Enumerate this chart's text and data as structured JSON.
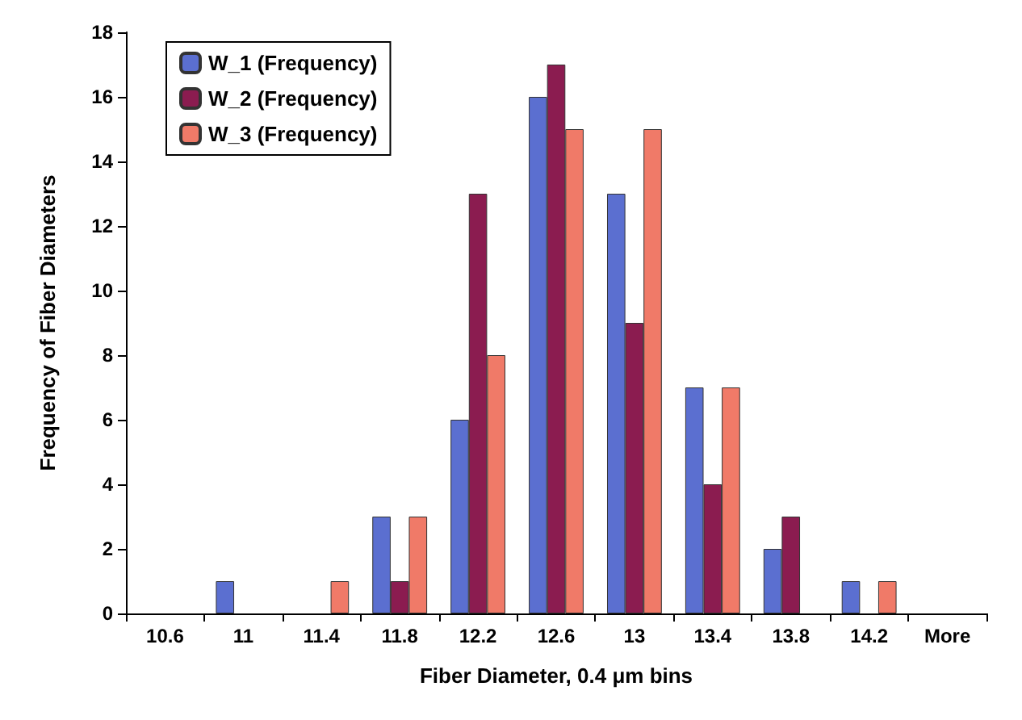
{
  "chart_data": {
    "type": "bar",
    "xlabel": "Fiber Diameter, 0.4 μm bins",
    "ylabel": "Frequency of Fiber Diameters",
    "categories": [
      "10.6",
      "11",
      "11.4",
      "11.8",
      "12.2",
      "12.6",
      "13",
      "13.4",
      "13.8",
      "14.2",
      "More"
    ],
    "series": [
      {
        "name": "W_1 (Frequency)",
        "color": "#5b6fd0",
        "values": [
          0,
          1,
          0,
          3,
          6,
          16,
          13,
          7,
          2,
          1,
          0
        ]
      },
      {
        "name": "W_2 (Frequency)",
        "color": "#8b1c50",
        "values": [
          0,
          0,
          0,
          1,
          13,
          17,
          9,
          4,
          3,
          0,
          0
        ]
      },
      {
        "name": "W_3 (Frequency)",
        "color": "#f07a68",
        "values": [
          0,
          0,
          1,
          3,
          8,
          15,
          15,
          7,
          0,
          1,
          0
        ]
      }
    ],
    "ylim": [
      0,
      18
    ],
    "yticks": [
      0,
      2,
      4,
      6,
      8,
      10,
      12,
      14,
      16,
      18
    ],
    "grid": false,
    "legend": "top left"
  }
}
